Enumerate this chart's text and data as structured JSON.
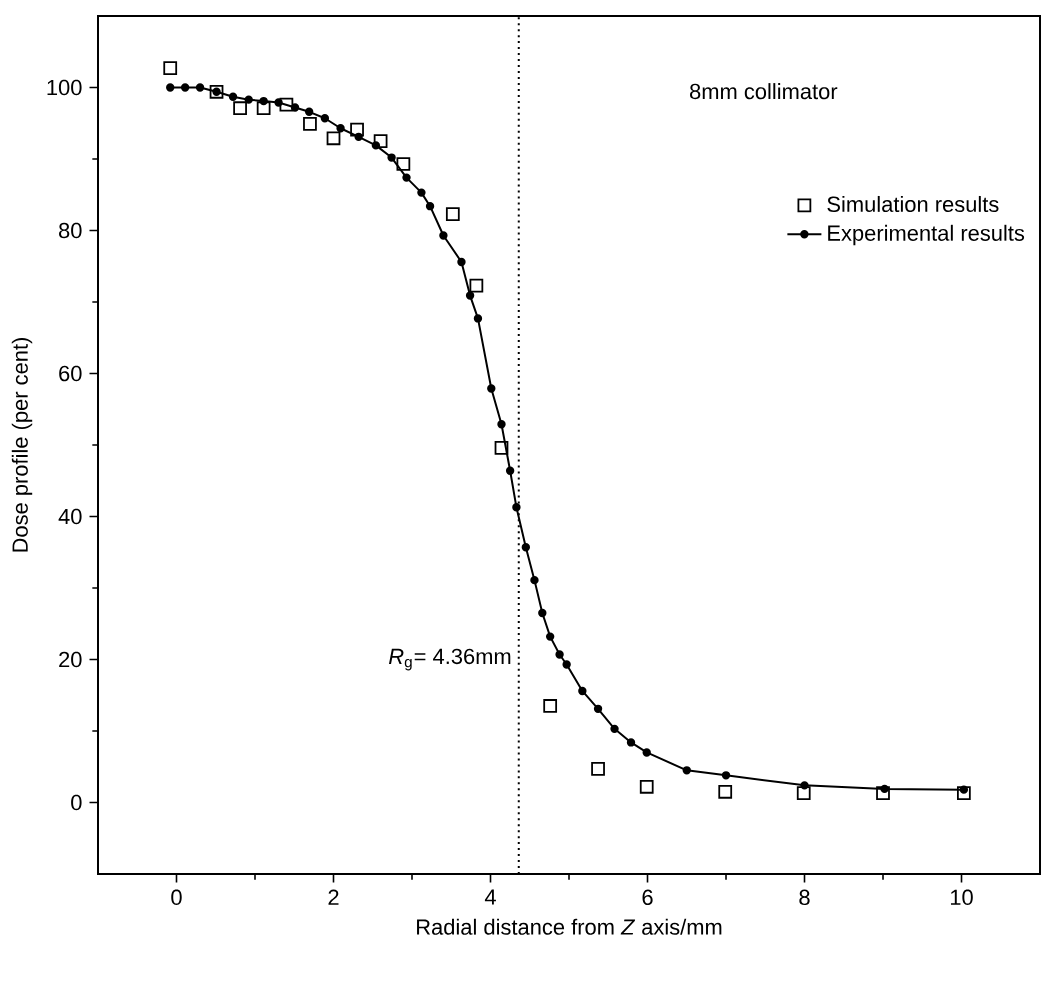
{
  "chart_data": {
    "type": "line",
    "xlabel": "Radial distance from *Z* axis/mm",
    "ylabel": "Dose profile (per cent)",
    "xlim": [
      -1,
      11
    ],
    "ylim": [
      -10,
      110
    ],
    "xticks": [
      0,
      2,
      4,
      6,
      8,
      10
    ],
    "yticks": [
      0,
      20,
      40,
      60,
      80,
      100
    ],
    "legend": "top right",
    "grid": false,
    "annotations": [
      "8mm collimator"
    ],
    "ref_lines": [
      {
        "axis": "x",
        "value": 4.36,
        "label": "*R*$_{g}$= 4.36mm",
        "line_style": "dotted"
      }
    ],
    "series": [
      {
        "name": "Simulation results",
        "type": "scatter",
        "marker": "square",
        "color": "#000000",
        "x": [
          -0.08,
          0.51,
          0.81,
          1.11,
          1.4,
          1.7,
          2.0,
          2.3,
          2.6,
          2.89,
          3.52,
          3.82,
          4.14,
          4.76,
          5.37,
          5.99,
          6.99,
          7.99,
          9.0,
          10.03
        ],
        "values": [
          102.7,
          99.4,
          97.1,
          97.1,
          97.6,
          94.9,
          92.9,
          94.1,
          92.5,
          89.3,
          82.3,
          72.3,
          49.6,
          13.5,
          4.7,
          2.2,
          1.5,
          1.3,
          1.3,
          1.3
        ]
      },
      {
        "name": "Experimental results",
        "marker": "circle",
        "line_style": "solid",
        "color": "#000000",
        "x": [
          -0.08,
          0.11,
          0.3,
          0.51,
          0.72,
          0.92,
          1.11,
          1.3,
          1.51,
          1.69,
          1.89,
          2.09,
          2.32,
          2.54,
          2.74,
          2.93,
          3.12,
          3.23,
          3.4,
          3.63,
          3.74,
          3.84,
          4.01,
          4.14,
          4.25,
          4.33,
          4.45,
          4.56,
          4.66,
          4.76,
          4.88,
          4.97,
          5.17,
          5.37,
          5.58,
          5.79,
          5.99,
          6.5,
          7.0,
          8.0,
          9.02,
          10.03
        ],
        "values": [
          100,
          100,
          100,
          99.4,
          98.7,
          98.3,
          98.1,
          97.9,
          97.2,
          96.6,
          95.7,
          94.3,
          93.1,
          91.9,
          90.2,
          87.4,
          85.3,
          83.4,
          79.3,
          75.6,
          70.9,
          67.7,
          57.9,
          52.9,
          46.4,
          41.3,
          35.7,
          31.1,
          26.5,
          23.2,
          20.7,
          19.3,
          15.6,
          13.1,
          10.3,
          8.4,
          7.0,
          4.5,
          3.8,
          2.4,
          1.9,
          1.8
        ]
      }
    ]
  }
}
